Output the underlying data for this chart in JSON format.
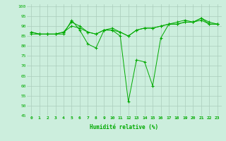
{
  "xlabel": "Humidité relative (%)",
  "background_color": "#cceedd",
  "grid_color": "#aaccbb",
  "line_color": "#00aa00",
  "marker": "+",
  "xlim": [
    -0.5,
    23.5
  ],
  "ylim": [
    45,
    101
  ],
  "yticks": [
    45,
    50,
    55,
    60,
    65,
    70,
    75,
    80,
    85,
    90,
    95,
    100
  ],
  "xticks": [
    0,
    1,
    2,
    3,
    4,
    5,
    6,
    7,
    8,
    9,
    10,
    11,
    12,
    13,
    14,
    15,
    16,
    17,
    18,
    19,
    20,
    21,
    22,
    23
  ],
  "series": [
    [
      86,
      86,
      86,
      86,
      86,
      93,
      88,
      81,
      79,
      88,
      88,
      85,
      52,
      73,
      72,
      60,
      84,
      91,
      92,
      93,
      92,
      94,
      92,
      91
    ],
    [
      87,
      86,
      86,
      86,
      87,
      92,
      90,
      87,
      86,
      88,
      89,
      87,
      85,
      88,
      89,
      89,
      90,
      91,
      91,
      92,
      92,
      93,
      91,
      91
    ],
    [
      87,
      86,
      86,
      86,
      87,
      90,
      89,
      87,
      86,
      88,
      88,
      87,
      85,
      88,
      89,
      89,
      90,
      91,
      91,
      92,
      92,
      94,
      91,
      91
    ]
  ]
}
